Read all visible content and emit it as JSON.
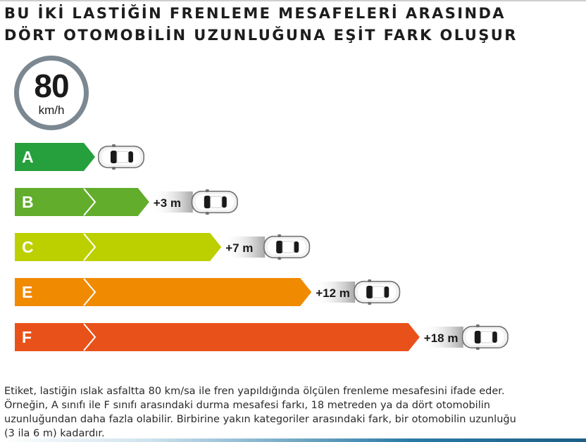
{
  "title": {
    "line1": "BU İKİ LASTİĞİN FRENLEME MESAFELERİ ARASINDA",
    "line2": "DÖRT OTOMOBİLİN UZUNLUĞUNA EŞİT FARK OLUŞUR"
  },
  "speed_badge": {
    "value": "80",
    "unit": "km/h"
  },
  "chart_data": {
    "type": "bar",
    "categories": [
      "A",
      "B",
      "C",
      "E",
      "F"
    ],
    "values": [
      0,
      3,
      7,
      12,
      18
    ],
    "value_labels": [
      "",
      "+3 m",
      "+7 m",
      "+12 m",
      "+18 m"
    ],
    "colors": [
      "#25a03c",
      "#62ad2c",
      "#bcd000",
      "#f08a00",
      "#e8521a"
    ],
    "value_unit": "m"
  },
  "caption": "Etiket, lastiğin ıslak asfaltta 80 km/sa ile fren yapıldığında ölçülen frenleme mesafesini ifade eder. Örneğin, A sınıfı ile F sınıfı arasındaki durma mesafesi farkı, 18 metreden ya da dört otomobilin uzunluğundan daha fazla olabilir. Birbirine yakın kategoriler arasındaki fark, bir otomobilin uzunluğu (3 ila 6 m) kadardır.",
  "icons": {
    "car": "car-icon",
    "chevron": "chevron-icon"
  }
}
